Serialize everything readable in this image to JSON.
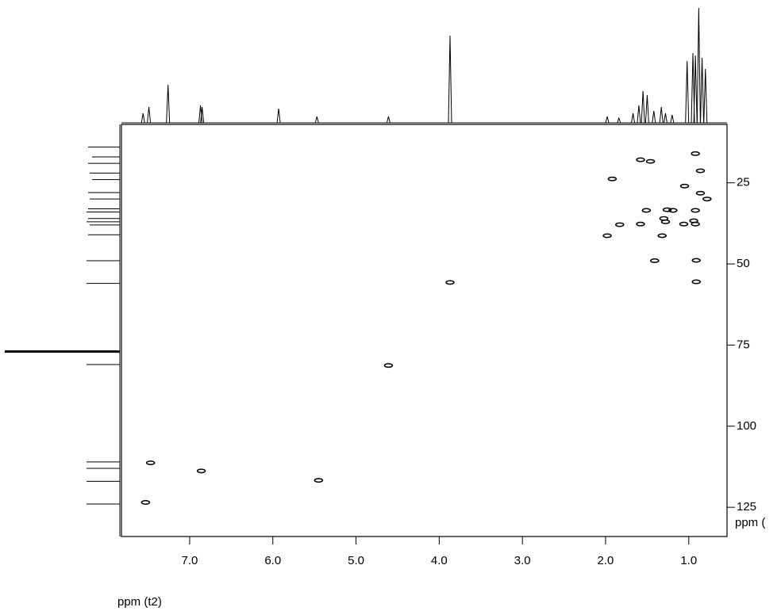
{
  "chart_data": {
    "type": "scatter",
    "x_label": "ppm (t2)",
    "y_label": "ppm (",
    "color": "#000000",
    "xlim": [
      7.82,
      0.54
    ],
    "ylim": [
      134,
      7
    ],
    "xticks": [
      {
        "value": 7,
        "label": "7.0"
      },
      {
        "value": 6,
        "label": "6.0"
      },
      {
        "value": 5,
        "label": "5.0"
      },
      {
        "value": 4,
        "label": "4.0"
      },
      {
        "value": 3,
        "label": "3.0"
      },
      {
        "value": 2,
        "label": "2.0"
      },
      {
        "value": 1,
        "label": "1.0"
      }
    ],
    "yticks": [
      25,
      50,
      75,
      100,
      125
    ],
    "x": [
      1.58,
      1.46,
      0.92,
      1.92,
      0.86,
      1.05,
      0.86,
      0.78,
      0.92,
      1.51,
      1.26,
      1.3,
      1.19,
      1.28,
      0.94,
      0.92,
      1.83,
      1.58,
      1.06,
      1.32,
      1.98,
      1.41,
      0.91,
      0.91,
      3.87,
      4.61,
      5.45,
      6.86,
      7.47,
      7.53
    ],
    "values": [
      17.9,
      18.4,
      16,
      23.8,
      21.3,
      26,
      28.2,
      30,
      33.5,
      33.5,
      33.3,
      36,
      33.5,
      37,
      36.7,
      37.7,
      37.9,
      37.7,
      37.7,
      41.3,
      41.3,
      49,
      48.9,
      55.5,
      55.7,
      81.3,
      116.7,
      113.8,
      111.3,
      123.5
    ],
    "f2_projection": {
      "x": [
        7.56,
        7.49,
        7.26,
        6.87,
        6.85,
        5.93,
        5.47,
        4.61,
        3.87,
        1.98,
        1.84,
        1.67,
        1.6,
        1.55,
        1.5,
        1.42,
        1.33,
        1.28,
        1.2,
        1.02,
        0.95,
        0.92,
        0.88,
        0.84,
        0.8
      ],
      "values": [
        12,
        20,
        48,
        22,
        20,
        18,
        8,
        8,
        110,
        8,
        6,
        12,
        22,
        40,
        35,
        15,
        20,
        12,
        10,
        78,
        88,
        85,
        145,
        82,
        68
      ]
    },
    "f1_projection": {
      "y": [
        14,
        17,
        19,
        22,
        24,
        28,
        30,
        33,
        34,
        36,
        37,
        38,
        41,
        49,
        56,
        77,
        81,
        111,
        113,
        117,
        124
      ],
      "values": [
        40,
        35,
        40,
        38,
        35,
        40,
        38,
        40,
        42,
        40,
        42,
        38,
        40,
        42,
        42,
        145,
        42,
        42,
        42,
        42,
        42
      ]
    }
  }
}
